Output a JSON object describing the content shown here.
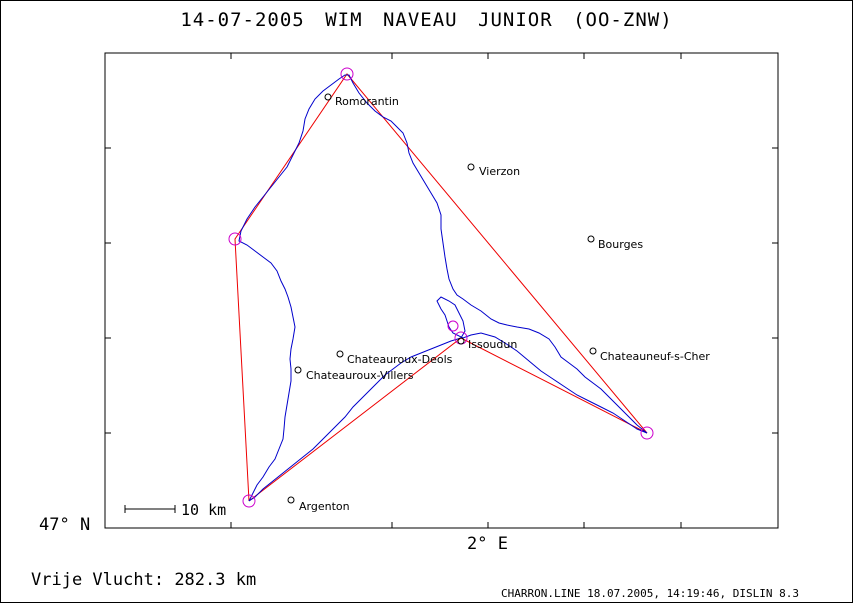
{
  "title": {
    "date": "14-07-2005",
    "pilot": "WIM NAVEAU",
    "glider": "JUNIOR (OO-ZNW)"
  },
  "axes": {
    "lat_label": "47° N",
    "lon_label": "2° E"
  },
  "scale_bar": {
    "label": "10 km"
  },
  "distance": {
    "label": "Vrije Vlucht:",
    "value": "282.3 km"
  },
  "footer": "CHARRON.LINE 18.07.2005, 14:19:46, DISLIN 8.3",
  "places": [
    {
      "name": "Romorantin"
    },
    {
      "name": "Vierzon"
    },
    {
      "name": "Bourges"
    },
    {
      "name": "Issoudun"
    },
    {
      "name": "Chateauroux-Deols"
    },
    {
      "name": "Chateauroux-Villers"
    },
    {
      "name": "Chateauneuf-s-Cher"
    },
    {
      "name": "Argenton"
    }
  ],
  "colors": {
    "track": "#0000cc",
    "task": "#ee0000",
    "turnpoint": "#cc00cc",
    "frame": "#000000"
  }
}
